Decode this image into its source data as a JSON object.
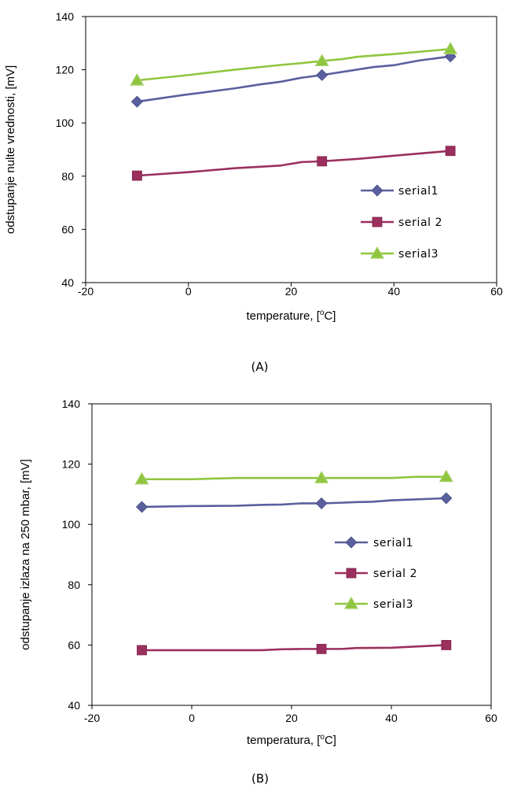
{
  "colors": {
    "serial1": "#5a5f9e",
    "serial2": "#9b2f5e",
    "serial3": "#8ec63f"
  },
  "chart_data": [
    {
      "type": "line",
      "caption": "(A)",
      "xlabel": "temperature, [",
      "xlabel_sup": "o",
      "xlabel_end": "C]",
      "ylabel": "odstupanje nulte vrednosti, [mV]",
      "xlim": [
        -20,
        60
      ],
      "ylim": [
        40,
        140
      ],
      "xticks": [
        -20,
        0,
        20,
        40,
        60
      ],
      "yticks": [
        40,
        60,
        80,
        100,
        120,
        140
      ],
      "grid": false,
      "legend_position": "right",
      "series": [
        {
          "name": "serial1",
          "marker": "diamond",
          "x": [
            -10,
            -1,
            9,
            14,
            18,
            22,
            26,
            31,
            36,
            40,
            45,
            51
          ],
          "y": [
            108,
            110.5,
            113,
            114.5,
            115.5,
            117,
            118,
            119.5,
            121,
            121.7,
            123.5,
            125
          ]
        },
        {
          "name": "serial 2",
          "marker": "square",
          "x": [
            -10,
            0,
            9,
            18,
            22,
            26,
            33,
            40,
            51
          ],
          "y": [
            80.2,
            81.5,
            83,
            84,
            85.3,
            85.6,
            86.5,
            87.7,
            89.5
          ]
        },
        {
          "name": "serial3",
          "marker": "triangle",
          "x": [
            -10,
            0,
            9,
            18,
            22,
            26,
            30,
            33,
            40,
            51
          ],
          "y": [
            116,
            118,
            120,
            121.8,
            122.5,
            123.3,
            124,
            124.9,
            125.9,
            127.8
          ]
        }
      ],
      "markers_at": [
        -10,
        26,
        51
      ]
    },
    {
      "type": "line",
      "caption": "(B)",
      "xlabel": "temperatura, [",
      "xlabel_sup": "o",
      "xlabel_end": "C]",
      "ylabel": "odstupanje izlaza na 250 mbar, [mV]",
      "xlim": [
        -20,
        60
      ],
      "ylim": [
        40,
        140
      ],
      "xticks": [
        -20,
        0,
        20,
        40,
        60
      ],
      "yticks": [
        40,
        60,
        80,
        100,
        120,
        140
      ],
      "grid": false,
      "legend_position": "right",
      "series": [
        {
          "name": "serial1",
          "marker": "diamond",
          "x": [
            -10,
            0,
            9,
            14,
            18,
            22,
            26,
            30,
            33,
            36,
            40,
            51
          ],
          "y": [
            105.8,
            106.1,
            106.2,
            106.5,
            106.6,
            107,
            107,
            107.2,
            107.4,
            107.5,
            108,
            108.7
          ]
        },
        {
          "name": "serial 2",
          "marker": "square",
          "x": [
            -10,
            0,
            9,
            14,
            18,
            22,
            26,
            30,
            33,
            40,
            51
          ],
          "y": [
            58.3,
            58.3,
            58.3,
            58.3,
            58.6,
            58.7,
            58.7,
            58.7,
            59,
            59.1,
            60
          ]
        },
        {
          "name": "serial3",
          "marker": "triangle",
          "x": [
            -10,
            0,
            9,
            18,
            22,
            26,
            33,
            40,
            45,
            51
          ],
          "y": [
            115,
            115,
            115.4,
            115.4,
            115.4,
            115.4,
            115.4,
            115.4,
            115.8,
            115.8
          ]
        }
      ],
      "markers_at": [
        -10,
        26,
        51
      ]
    }
  ]
}
